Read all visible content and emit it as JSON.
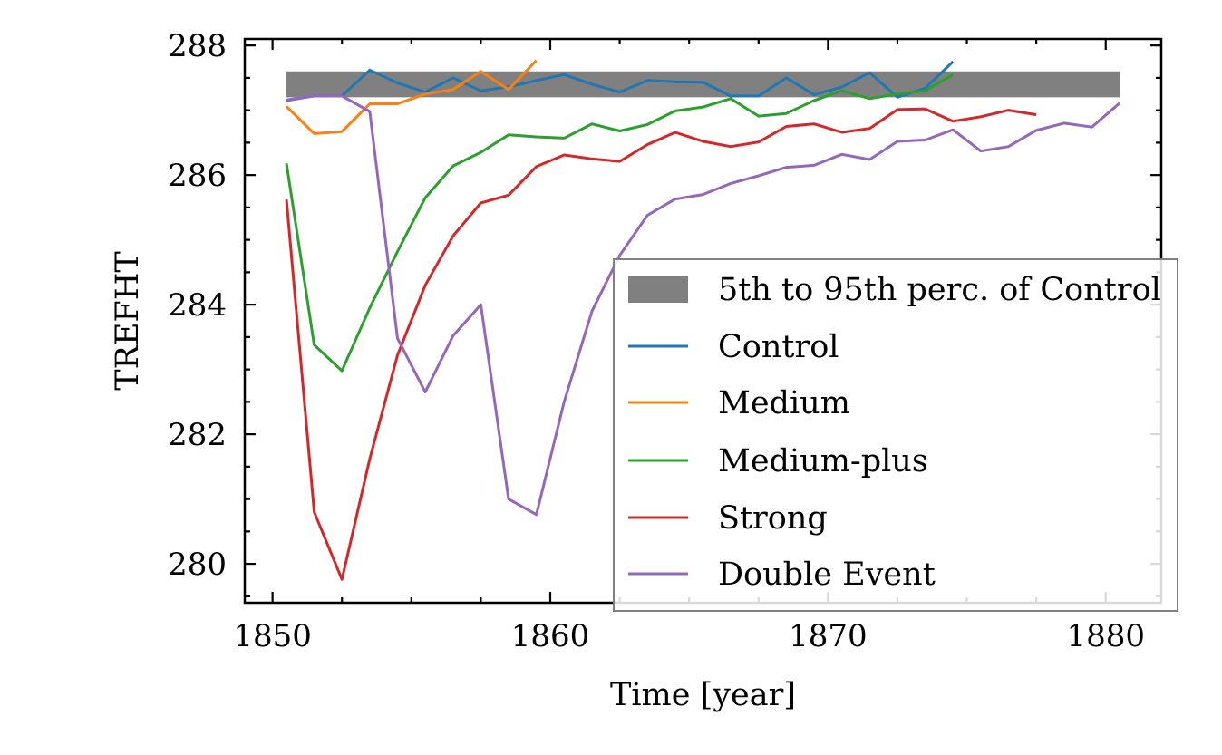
{
  "chart_data": {
    "type": "line",
    "xlabel": "Time [year]",
    "ylabel": "TREFHT",
    "xlim": [
      1849,
      1882
    ],
    "ylim": [
      279.4,
      288.1
    ],
    "x_ticks": [
      1850,
      1860,
      1870,
      1880
    ],
    "y_ticks": [
      280,
      282,
      284,
      286,
      288
    ],
    "x_ticks_labels": [
      "1850",
      "1860",
      "1870",
      "1880"
    ],
    "y_ticks_labels": [
      "280",
      "282",
      "284",
      "286",
      "288"
    ],
    "band": {
      "name": "5th to 95th perc. of Control",
      "x_start": 1850.5,
      "x_end": 1880.5,
      "y_low": 287.2,
      "y_high": 287.6,
      "color": "#808080"
    },
    "series": [
      {
        "name": "Control",
        "color": "#1f77b4",
        "x": [
          1850.5,
          1851.5,
          1852.5,
          1853.5,
          1854.5,
          1855.5,
          1856.5,
          1857.5,
          1858.5,
          1859.5,
          1860.5,
          1861.5,
          1862.5,
          1863.5,
          1864.5,
          1865.5,
          1866.5,
          1867.5,
          1868.5,
          1869.5,
          1870.5,
          1871.5,
          1872.5,
          1873.5,
          1874.5
        ],
        "values": [
          287.15,
          287.22,
          287.22,
          287.62,
          287.42,
          287.28,
          287.5,
          287.3,
          287.36,
          287.46,
          287.55,
          287.4,
          287.28,
          287.46,
          287.44,
          287.43,
          287.22,
          287.22,
          287.5,
          287.24,
          287.36,
          287.58,
          287.2,
          287.34,
          287.75
        ]
      },
      {
        "name": "Medium",
        "color": "#ff7f0e",
        "x": [
          1850.5,
          1851.5,
          1852.5,
          1853.5,
          1854.5,
          1855.5,
          1856.5,
          1857.5,
          1858.5,
          1859.5
        ],
        "values": [
          287.06,
          286.64,
          286.67,
          287.1,
          287.1,
          287.25,
          287.32,
          287.6,
          287.32,
          287.77
        ]
      },
      {
        "name": "Medium-plus",
        "color": "#2ca02c",
        "x": [
          1850.5,
          1851.5,
          1852.5,
          1853.5,
          1854.5,
          1855.5,
          1856.5,
          1857.5,
          1858.5,
          1859.5,
          1860.5,
          1861.5,
          1862.5,
          1863.5,
          1864.5,
          1865.5,
          1866.5,
          1867.5,
          1868.5,
          1869.5,
          1870.5,
          1871.5,
          1872.5,
          1873.5,
          1874.5
        ],
        "values": [
          286.18,
          283.38,
          282.98,
          283.95,
          284.82,
          285.65,
          286.14,
          286.35,
          286.62,
          286.59,
          286.57,
          286.79,
          286.68,
          286.78,
          286.99,
          287.05,
          287.18,
          286.91,
          286.95,
          287.15,
          287.3,
          287.18,
          287.25,
          287.3,
          287.55
        ]
      },
      {
        "name": "Strong",
        "color": "#d62728",
        "x": [
          1850.5,
          1851.5,
          1852.5,
          1853.5,
          1854.5,
          1855.5,
          1856.5,
          1857.5,
          1858.5,
          1859.5,
          1860.5,
          1861.5,
          1862.5,
          1863.5,
          1864.5,
          1865.5,
          1866.5,
          1867.5,
          1868.5,
          1869.5,
          1870.5,
          1871.5,
          1872.5,
          1873.5,
          1874.5,
          1875.5,
          1876.5,
          1877.5
        ],
        "values": [
          285.62,
          280.8,
          279.76,
          281.62,
          283.22,
          284.3,
          285.06,
          285.57,
          285.69,
          286.13,
          286.31,
          286.25,
          286.21,
          286.47,
          286.66,
          286.52,
          286.44,
          286.51,
          286.75,
          286.79,
          286.66,
          286.72,
          287.01,
          287.02,
          286.83,
          286.9,
          287.0,
          286.93
        ]
      },
      {
        "name": "Double Event",
        "color": "#9467bd",
        "x": [
          1850.5,
          1851.5,
          1852.5,
          1853.5,
          1854.5,
          1855.5,
          1856.5,
          1857.5,
          1858.5,
          1859.5,
          1860.5,
          1861.5,
          1862.5,
          1863.5,
          1864.5,
          1865.5,
          1866.5,
          1867.5,
          1868.5,
          1869.5,
          1870.5,
          1871.5,
          1872.5,
          1873.5,
          1874.5,
          1875.5,
          1876.5,
          1877.5,
          1878.5,
          1879.5,
          1880.5
        ],
        "values": [
          287.16,
          287.22,
          287.22,
          286.98,
          283.48,
          282.65,
          283.52,
          284.0,
          281.0,
          280.76,
          282.5,
          283.9,
          284.76,
          285.38,
          285.63,
          285.7,
          285.87,
          285.99,
          286.12,
          286.15,
          286.32,
          286.24,
          286.52,
          286.54,
          286.7,
          286.37,
          286.44,
          286.69,
          286.8,
          286.74,
          287.11
        ]
      }
    ],
    "legend": {
      "placement": "lower-right",
      "entries": [
        "5th to 95th perc. of Control",
        "Control",
        "Medium",
        "Medium-plus",
        "Strong",
        "Double Event"
      ]
    },
    "grid": false
  }
}
